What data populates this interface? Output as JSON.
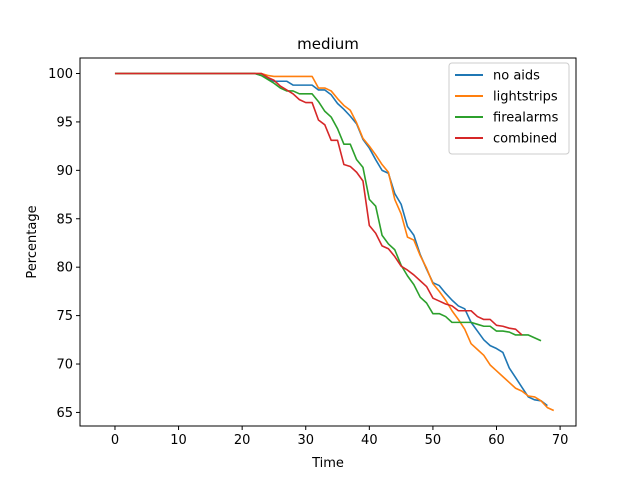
{
  "chart_data": {
    "type": "line",
    "title": "medium",
    "xlabel": "Time",
    "ylabel": "Percentage",
    "xlim": [
      -5.5,
      72.5
    ],
    "ylim": [
      63.6,
      101.6
    ],
    "xticks": [
      0,
      10,
      20,
      30,
      40,
      50,
      60,
      70
    ],
    "yticks": [
      65,
      70,
      75,
      80,
      85,
      90,
      95,
      100
    ],
    "grid": false,
    "legend_position": "top-right",
    "series": [
      {
        "name": "no aids",
        "color": "#1f77b4",
        "points": [
          [
            0,
            100
          ],
          [
            22,
            100
          ],
          [
            23,
            99.8
          ],
          [
            24,
            99.5
          ],
          [
            25,
            99.2
          ],
          [
            27,
            99.2
          ],
          [
            28,
            98.8
          ],
          [
            31,
            98.8
          ],
          [
            32,
            98.3
          ],
          [
            33,
            98.3
          ],
          [
            34,
            97.8
          ],
          [
            35,
            96.9
          ],
          [
            36,
            96.3
          ],
          [
            37,
            95.6
          ],
          [
            38,
            94.8
          ],
          [
            39,
            93.2
          ],
          [
            40,
            92.3
          ],
          [
            41,
            91.1
          ],
          [
            42,
            90.0
          ],
          [
            43,
            89.7
          ],
          [
            44,
            87.6
          ],
          [
            45,
            86.5
          ],
          [
            46,
            84.2
          ],
          [
            47,
            83.3
          ],
          [
            48,
            81.3
          ],
          [
            49,
            79.8
          ],
          [
            50,
            78.4
          ],
          [
            51,
            78.1
          ],
          [
            52,
            77.3
          ],
          [
            53,
            76.6
          ],
          [
            54,
            76.0
          ],
          [
            55,
            75.7
          ],
          [
            56,
            74.3
          ],
          [
            57,
            73.4
          ],
          [
            58,
            72.5
          ],
          [
            59,
            71.9
          ],
          [
            60,
            71.6
          ],
          [
            61,
            71.2
          ],
          [
            62,
            69.6
          ],
          [
            63,
            68.6
          ],
          [
            64,
            67.6
          ],
          [
            65,
            66.6
          ],
          [
            66,
            66.3
          ],
          [
            67,
            66.2
          ],
          [
            68,
            65.7
          ]
        ]
      },
      {
        "name": "lightstrips",
        "color": "#ff7f0e",
        "points": [
          [
            0,
            100
          ],
          [
            23,
            100
          ],
          [
            24,
            99.8
          ],
          [
            25,
            99.7
          ],
          [
            31,
            99.7
          ],
          [
            32,
            98.5
          ],
          [
            33,
            98.5
          ],
          [
            34,
            98.2
          ],
          [
            35,
            97.4
          ],
          [
            36,
            96.7
          ],
          [
            37,
            96.2
          ],
          [
            38,
            94.9
          ],
          [
            39,
            93.3
          ],
          [
            40,
            92.5
          ],
          [
            41,
            91.6
          ],
          [
            42,
            90.6
          ],
          [
            43,
            89.8
          ],
          [
            44,
            87.0
          ],
          [
            45,
            85.5
          ],
          [
            46,
            83.1
          ],
          [
            47,
            82.8
          ],
          [
            48,
            81.2
          ],
          [
            49,
            79.9
          ],
          [
            50,
            78.3
          ],
          [
            51,
            77.5
          ],
          [
            52,
            76.6
          ],
          [
            53,
            75.5
          ],
          [
            54,
            74.6
          ],
          [
            55,
            73.6
          ],
          [
            56,
            72.1
          ],
          [
            57,
            71.5
          ],
          [
            58,
            70.9
          ],
          [
            59,
            69.9
          ],
          [
            60,
            69.3
          ],
          [
            61,
            68.7
          ],
          [
            62,
            68.1
          ],
          [
            63,
            67.5
          ],
          [
            64,
            67.2
          ],
          [
            65,
            66.7
          ],
          [
            66,
            66.6
          ],
          [
            67,
            66.2
          ],
          [
            68,
            65.5
          ],
          [
            69,
            65.2
          ]
        ]
      },
      {
        "name": "firealarms",
        "color": "#2ca02c",
        "points": [
          [
            0,
            100
          ],
          [
            22,
            100
          ],
          [
            23,
            99.8
          ],
          [
            24,
            99.4
          ],
          [
            25,
            99.0
          ],
          [
            26,
            98.5
          ],
          [
            27,
            98.2
          ],
          [
            28,
            98.2
          ],
          [
            29,
            97.9
          ],
          [
            31,
            97.9
          ],
          [
            32,
            97.1
          ],
          [
            33,
            96.1
          ],
          [
            34,
            95.5
          ],
          [
            35,
            94.3
          ],
          [
            36,
            92.7
          ],
          [
            37,
            92.7
          ],
          [
            38,
            91.1
          ],
          [
            39,
            90.3
          ],
          [
            40,
            87.0
          ],
          [
            41,
            86.3
          ],
          [
            42,
            83.3
          ],
          [
            43,
            82.4
          ],
          [
            44,
            81.8
          ],
          [
            45,
            80.2
          ],
          [
            46,
            79.1
          ],
          [
            47,
            78.2
          ],
          [
            48,
            76.9
          ],
          [
            49,
            76.3
          ],
          [
            50,
            75.2
          ],
          [
            51,
            75.2
          ],
          [
            52,
            74.9
          ],
          [
            53,
            74.3
          ],
          [
            54,
            74.3
          ],
          [
            55,
            74.3
          ],
          [
            56,
            74.3
          ],
          [
            57,
            74.1
          ],
          [
            58,
            73.9
          ],
          [
            59,
            73.9
          ],
          [
            60,
            73.4
          ],
          [
            61,
            73.4
          ],
          [
            62,
            73.3
          ],
          [
            63,
            73.0
          ],
          [
            64,
            73.0
          ],
          [
            65,
            73.0
          ],
          [
            66,
            72.7
          ],
          [
            67,
            72.4
          ]
        ]
      },
      {
        "name": "combined",
        "color": "#d62728",
        "points": [
          [
            0,
            100
          ],
          [
            23,
            100
          ],
          [
            24,
            99.6
          ],
          [
            25,
            99.3
          ],
          [
            26,
            98.7
          ],
          [
            27,
            98.3
          ],
          [
            28,
            97.9
          ],
          [
            29,
            97.3
          ],
          [
            30,
            97.0
          ],
          [
            31,
            97.0
          ],
          [
            32,
            95.2
          ],
          [
            33,
            94.7
          ],
          [
            34,
            93.1
          ],
          [
            35,
            93.1
          ],
          [
            36,
            90.6
          ],
          [
            37,
            90.4
          ],
          [
            38,
            89.8
          ],
          [
            39,
            88.9
          ],
          [
            40,
            84.3
          ],
          [
            41,
            83.5
          ],
          [
            42,
            82.2
          ],
          [
            43,
            81.9
          ],
          [
            44,
            81.1
          ],
          [
            45,
            80.1
          ],
          [
            46,
            79.7
          ],
          [
            47,
            79.2
          ],
          [
            48,
            78.6
          ],
          [
            49,
            78.0
          ],
          [
            50,
            76.8
          ],
          [
            51,
            76.5
          ],
          [
            52,
            76.2
          ],
          [
            53,
            76.0
          ],
          [
            54,
            75.5
          ],
          [
            55,
            75.5
          ],
          [
            56,
            75.5
          ],
          [
            57,
            74.9
          ],
          [
            58,
            74.6
          ],
          [
            59,
            74.6
          ],
          [
            60,
            74.0
          ],
          [
            61,
            73.9
          ],
          [
            62,
            73.7
          ],
          [
            63,
            73.6
          ],
          [
            64,
            73.0
          ]
        ]
      }
    ]
  }
}
